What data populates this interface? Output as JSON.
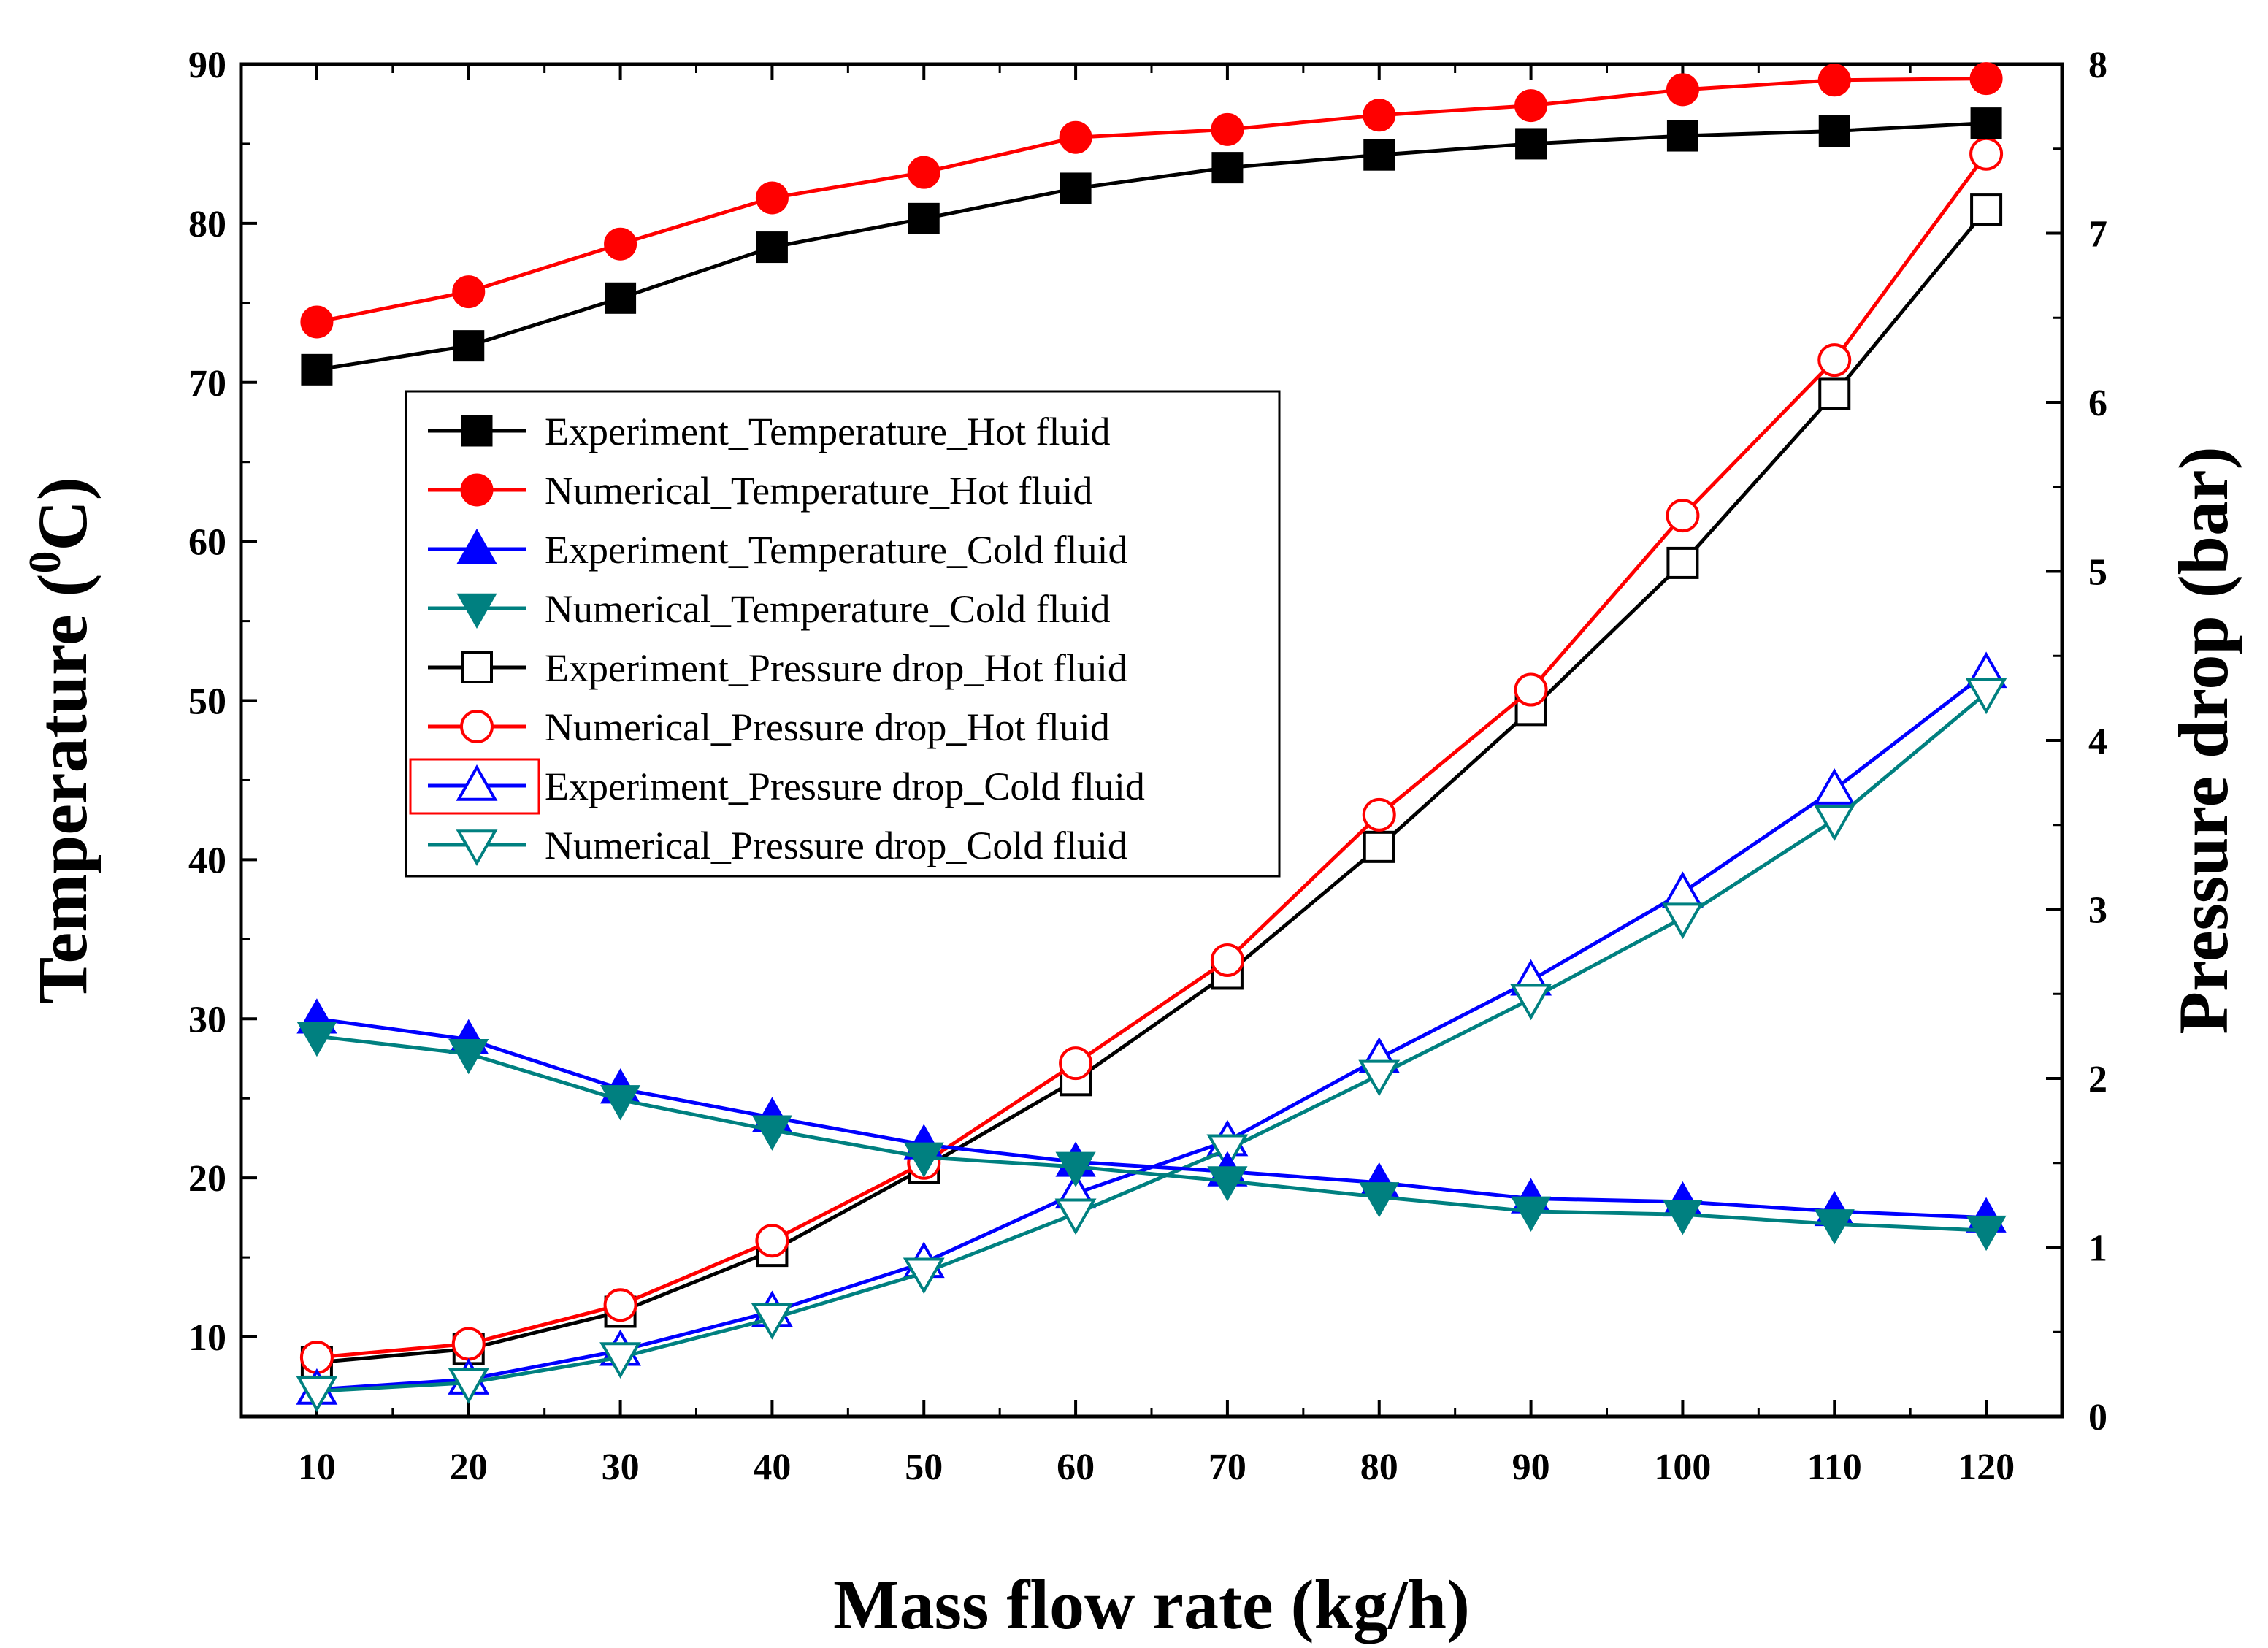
{
  "chart_data": {
    "type": "line",
    "x": [
      10,
      20,
      30,
      40,
      50,
      60,
      70,
      80,
      90,
      100,
      110,
      120
    ],
    "xlabel": "Mass flow rate (kg/h)",
    "xlim": [
      5,
      125
    ],
    "xticks": [
      "10",
      "20",
      "30",
      "40",
      "50",
      "60",
      "70",
      "80",
      "90",
      "100",
      "110",
      "120"
    ],
    "ylabel_left_prefix": "Temperature (",
    "ylabel_left_sup": "0",
    "ylabel_left_suffix": "C)",
    "ylim_left": [
      5,
      90
    ],
    "yticks_left": [
      "10",
      "20",
      "30",
      "40",
      "50",
      "60",
      "70",
      "80",
      "90"
    ],
    "ylabel_right": "Pressure drop (bar)",
    "ylim_right": [
      0,
      8
    ],
    "yticks_right": [
      "0",
      "1",
      "2",
      "3",
      "4",
      "5",
      "6",
      "7",
      "8"
    ],
    "legend_position": "upper-left-center",
    "series": [
      {
        "name": "Experiment_Temperature_Hot fluid",
        "axis": "left",
        "color": "#000000",
        "marker": "square",
        "filled": true,
        "values": [
          70.8,
          72.3,
          75.3,
          78.5,
          80.3,
          82.2,
          83.5,
          84.3,
          85.0,
          85.5,
          85.8,
          86.3
        ]
      },
      {
        "name": "Numerical_Temperature_Hot fluid",
        "axis": "left",
        "color": "#ff0000",
        "marker": "circle",
        "filled": true,
        "values": [
          73.8,
          75.7,
          78.7,
          81.6,
          83.2,
          85.4,
          85.9,
          86.8,
          87.4,
          88.4,
          89.0,
          89.1
        ]
      },
      {
        "name": "Experiment_Temperature_Cold fluid",
        "axis": "left",
        "color": "#0000ff",
        "marker": "triangle-up",
        "filled": true,
        "values": [
          30.0,
          28.7,
          25.6,
          23.8,
          22.1,
          21.0,
          20.4,
          19.7,
          18.7,
          18.5,
          17.9,
          17.5
        ]
      },
      {
        "name": "Numerical_Temperature_Cold fluid",
        "axis": "left",
        "color": "#008080",
        "marker": "triangle-down",
        "filled": true,
        "values": [
          28.9,
          27.8,
          24.9,
          23.0,
          21.3,
          20.7,
          19.8,
          18.8,
          17.9,
          17.7,
          17.1,
          16.7
        ]
      },
      {
        "name": "Experiment_Pressure drop_Hot fluid",
        "axis": "right",
        "color": "#000000",
        "marker": "square",
        "filled": false,
        "values": [
          0.32,
          0.4,
          0.62,
          0.98,
          1.47,
          1.99,
          2.62,
          3.37,
          4.18,
          5.05,
          6.05,
          7.14
        ]
      },
      {
        "name": "Numerical_Pressure drop_Hot fluid",
        "axis": "right",
        "color": "#ff0000",
        "marker": "circle",
        "filled": false,
        "values": [
          0.35,
          0.43,
          0.66,
          1.04,
          1.5,
          2.09,
          2.7,
          3.56,
          4.3,
          5.33,
          6.25,
          7.47
        ]
      },
      {
        "name": "Experiment_Pressure drop_Cold fluid",
        "axis": "right",
        "color": "#0000ff",
        "marker": "triangle-up",
        "filled": false,
        "values": [
          0.16,
          0.22,
          0.39,
          0.62,
          0.91,
          1.32,
          1.63,
          2.12,
          2.58,
          3.1,
          3.71,
          4.4
        ]
      },
      {
        "name": "Numerical_Pressure drop_Cold fluid",
        "axis": "right",
        "color": "#008080",
        "marker": "triangle-down",
        "filled": false,
        "values": [
          0.15,
          0.2,
          0.35,
          0.58,
          0.85,
          1.2,
          1.58,
          2.02,
          2.47,
          2.95,
          3.53,
          4.28
        ]
      }
    ]
  }
}
